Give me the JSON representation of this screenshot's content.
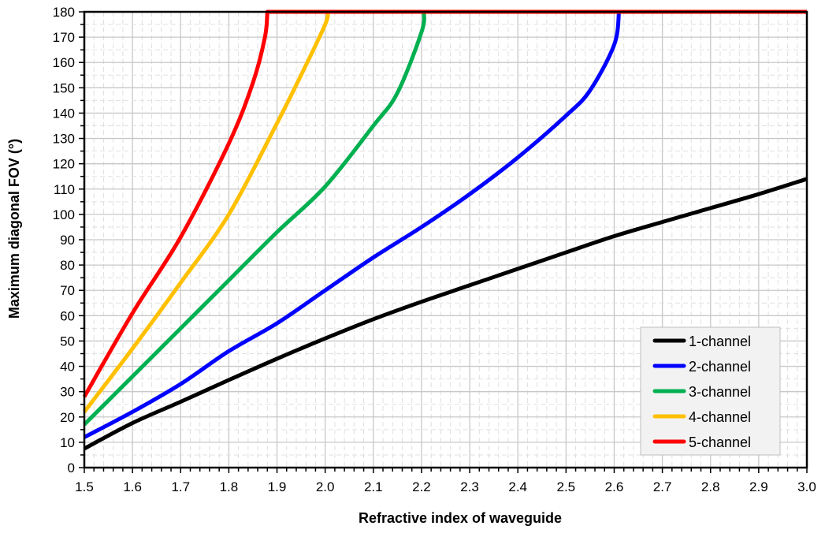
{
  "chart_data": {
    "type": "line",
    "title": "",
    "xlabel": "Refractive index of waveguide",
    "ylabel": "Maximum diagonal FOV (°)",
    "xlim": [
      1.5,
      3.0
    ],
    "ylim": [
      0,
      180
    ],
    "xticks": [
      "1.5",
      "1.6",
      "1.7",
      "1.8",
      "1.9",
      "2.0",
      "2.1",
      "2.2",
      "2.3",
      "2.4",
      "2.5",
      "2.6",
      "2.7",
      "2.8",
      "2.9",
      "3.0"
    ],
    "yticks": [
      "0",
      "10",
      "20",
      "30",
      "40",
      "50",
      "60",
      "70",
      "80",
      "90",
      "100",
      "110",
      "120",
      "130",
      "140",
      "150",
      "160",
      "170",
      "180"
    ],
    "grid": true,
    "legend_position": "bottom-right",
    "series": [
      {
        "name": "1-channel",
        "color": "#000000",
        "x": [
          1.5,
          1.6,
          1.7,
          1.8,
          1.9,
          2.0,
          2.1,
          2.2,
          2.3,
          2.4,
          2.5,
          2.6,
          2.7,
          2.8,
          2.9,
          3.0
        ],
        "y": [
          7.5,
          17.6,
          26,
          34.6,
          43,
          51,
          58.6,
          65.5,
          72,
          78.5,
          85,
          91.4,
          97,
          102.5,
          108,
          114
        ]
      },
      {
        "name": "2-channel",
        "color": "#0000ff",
        "x": [
          1.5,
          1.6,
          1.7,
          1.8,
          1.9,
          2.0,
          2.1,
          2.2,
          2.3,
          2.4,
          2.5,
          2.55,
          2.6,
          2.61,
          3.0
        ],
        "y": [
          12,
          22,
          33,
          46,
          57,
          70,
          83,
          95,
          108,
          122.5,
          139,
          149,
          167,
          180,
          180
        ]
      },
      {
        "name": "3-channel",
        "color": "#00b050",
        "x": [
          1.5,
          1.6,
          1.7,
          1.8,
          1.9,
          2.0,
          2.1,
          2.15,
          2.2,
          2.205,
          3.0
        ],
        "y": [
          17,
          36,
          55,
          74,
          93,
          111,
          135,
          148,
          172,
          180,
          180
        ]
      },
      {
        "name": "4-channel",
        "color": "#ffc000",
        "x": [
          1.5,
          1.6,
          1.7,
          1.8,
          1.9,
          1.95,
          2.0,
          2.005,
          3.0
        ],
        "y": [
          22,
          47,
          73,
          100,
          136,
          155,
          175,
          180,
          180
        ]
      },
      {
        "name": "5-channel",
        "color": "#ff0000",
        "x": [
          1.5,
          1.6,
          1.7,
          1.8,
          1.85,
          1.875,
          1.88,
          3.0
        ],
        "y": [
          28,
          61,
          91,
          128,
          152,
          170,
          180,
          180
        ]
      }
    ]
  }
}
